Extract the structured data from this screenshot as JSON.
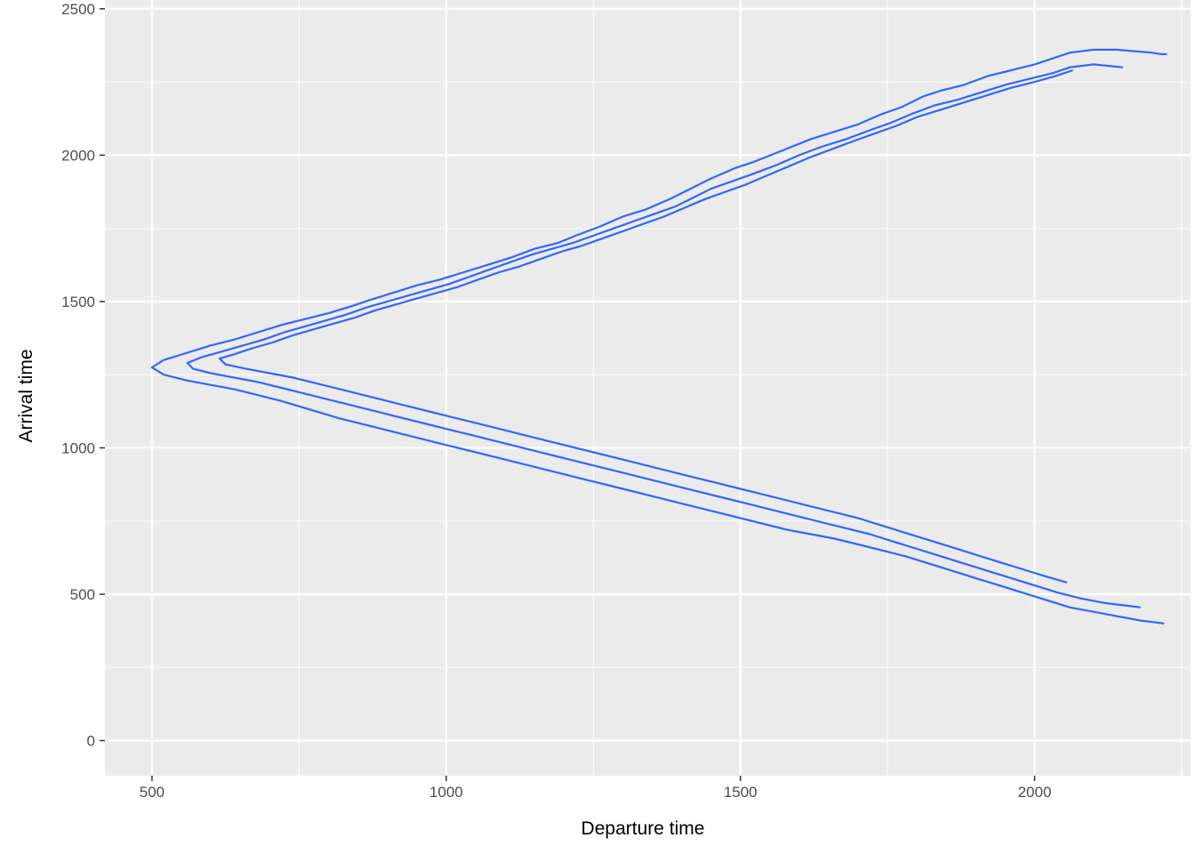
{
  "chart_data": {
    "type": "line",
    "subtype": "density-contour",
    "title": "",
    "xlabel": "Departure time",
    "ylabel": "Arrival time",
    "xlim": [
      420,
      2265
    ],
    "ylim": [
      -120,
      2530
    ],
    "x_ticks": [
      500,
      1000,
      1500,
      2000
    ],
    "y_ticks": [
      0,
      500,
      1000,
      1500,
      2000,
      2500
    ],
    "x_tick_labels": [
      "500",
      "1000",
      "1500",
      "2000"
    ],
    "y_tick_labels": [
      "0",
      "500",
      "1000",
      "1500",
      "2000",
      "2500"
    ],
    "x_minor_ticks": [
      750,
      1250,
      1750,
      2250
    ],
    "y_minor_ticks": [
      250,
      750,
      1250,
      1750,
      2250
    ],
    "grid": true,
    "legend": "none",
    "colors": {
      "panel": "#ebebeb",
      "grid": "#ffffff",
      "line": "#3366ff"
    },
    "series": [
      {
        "points": [
          [
            2225,
            2345
          ],
          [
            2215,
            2345
          ],
          [
            2200,
            2350
          ],
          [
            2170,
            2355
          ],
          [
            2140,
            2360
          ],
          [
            2100,
            2360
          ],
          [
            2060,
            2350
          ],
          [
            2030,
            2330
          ],
          [
            2000,
            2310
          ],
          [
            1960,
            2290
          ],
          [
            1920,
            2270
          ],
          [
            1880,
            2240
          ],
          [
            1840,
            2220
          ],
          [
            1810,
            2200
          ],
          [
            1775,
            2165
          ],
          [
            1740,
            2140
          ],
          [
            1700,
            2105
          ],
          [
            1660,
            2080
          ],
          [
            1620,
            2055
          ],
          [
            1570,
            2015
          ],
          [
            1520,
            1975
          ],
          [
            1490,
            1955
          ],
          [
            1450,
            1920
          ],
          [
            1420,
            1890
          ],
          [
            1380,
            1850
          ],
          [
            1340,
            1815
          ],
          [
            1300,
            1790
          ],
          [
            1260,
            1755
          ],
          [
            1220,
            1725
          ],
          [
            1190,
            1700
          ],
          [
            1150,
            1680
          ],
          [
            1110,
            1650
          ],
          [
            1070,
            1625
          ],
          [
            1030,
            1600
          ],
          [
            990,
            1575
          ],
          [
            950,
            1555
          ],
          [
            910,
            1530
          ],
          [
            870,
            1505
          ],
          [
            840,
            1485
          ],
          [
            800,
            1460
          ],
          [
            760,
            1440
          ],
          [
            720,
            1420
          ],
          [
            680,
            1395
          ],
          [
            640,
            1370
          ],
          [
            600,
            1350
          ],
          [
            560,
            1325
          ],
          [
            520,
            1300
          ],
          [
            500,
            1275
          ],
          [
            520,
            1250
          ],
          [
            560,
            1230
          ],
          [
            600,
            1215
          ],
          [
            640,
            1200
          ],
          [
            680,
            1180
          ],
          [
            720,
            1160
          ],
          [
            770,
            1130
          ],
          [
            820,
            1100
          ],
          [
            860,
            1080
          ],
          [
            900,
            1060
          ],
          [
            940,
            1040
          ],
          [
            980,
            1020
          ],
          [
            1020,
            1000
          ],
          [
            1060,
            980
          ],
          [
            1100,
            960
          ],
          [
            1140,
            940
          ],
          [
            1180,
            920
          ],
          [
            1220,
            900
          ],
          [
            1260,
            880
          ],
          [
            1300,
            860
          ],
          [
            1340,
            840
          ],
          [
            1380,
            820
          ],
          [
            1420,
            800
          ],
          [
            1460,
            780
          ],
          [
            1500,
            760
          ],
          [
            1540,
            740
          ],
          [
            1580,
            720
          ],
          [
            1620,
            705
          ],
          [
            1660,
            690
          ],
          [
            1700,
            670
          ],
          [
            1740,
            650
          ],
          [
            1780,
            630
          ],
          [
            1820,
            605
          ],
          [
            1860,
            580
          ],
          [
            1900,
            555
          ],
          [
            1940,
            530
          ],
          [
            1980,
            505
          ],
          [
            2020,
            480
          ],
          [
            2060,
            455
          ],
          [
            2100,
            440
          ],
          [
            2140,
            425
          ],
          [
            2180,
            410
          ],
          [
            2200,
            405
          ],
          [
            2220,
            400
          ]
        ]
      },
      {
        "points": [
          [
            2150,
            2300
          ],
          [
            2100,
            2310
          ],
          [
            2060,
            2300
          ],
          [
            2030,
            2280
          ],
          [
            1990,
            2260
          ],
          [
            1950,
            2240
          ],
          [
            1910,
            2215
          ],
          [
            1870,
            2190
          ],
          [
            1830,
            2170
          ],
          [
            1790,
            2140
          ],
          [
            1755,
            2110
          ],
          [
            1720,
            2085
          ],
          [
            1680,
            2055
          ],
          [
            1640,
            2030
          ],
          [
            1600,
            2000
          ],
          [
            1560,
            1965
          ],
          [
            1520,
            1935
          ],
          [
            1485,
            1910
          ],
          [
            1450,
            1885
          ],
          [
            1420,
            1855
          ],
          [
            1390,
            1825
          ],
          [
            1355,
            1800
          ],
          [
            1320,
            1775
          ],
          [
            1285,
            1750
          ],
          [
            1250,
            1725
          ],
          [
            1215,
            1700
          ],
          [
            1180,
            1680
          ],
          [
            1145,
            1660
          ],
          [
            1110,
            1635
          ],
          [
            1075,
            1610
          ],
          [
            1040,
            1585
          ],
          [
            1005,
            1560
          ],
          [
            970,
            1540
          ],
          [
            935,
            1520
          ],
          [
            900,
            1500
          ],
          [
            865,
            1480
          ],
          [
            830,
            1455
          ],
          [
            795,
            1435
          ],
          [
            760,
            1415
          ],
          [
            725,
            1395
          ],
          [
            690,
            1370
          ],
          [
            655,
            1350
          ],
          [
            620,
            1330
          ],
          [
            585,
            1310
          ],
          [
            560,
            1290
          ],
          [
            570,
            1270
          ],
          [
            600,
            1255
          ],
          [
            640,
            1240
          ],
          [
            680,
            1225
          ],
          [
            720,
            1205
          ],
          [
            760,
            1185
          ],
          [
            800,
            1165
          ],
          [
            840,
            1145
          ],
          [
            880,
            1125
          ],
          [
            920,
            1105
          ],
          [
            960,
            1085
          ],
          [
            1000,
            1065
          ],
          [
            1040,
            1045
          ],
          [
            1080,
            1025
          ],
          [
            1120,
            1005
          ],
          [
            1160,
            985
          ],
          [
            1200,
            965
          ],
          [
            1240,
            945
          ],
          [
            1280,
            925
          ],
          [
            1320,
            905
          ],
          [
            1360,
            885
          ],
          [
            1400,
            865
          ],
          [
            1440,
            845
          ],
          [
            1480,
            825
          ],
          [
            1520,
            805
          ],
          [
            1560,
            785
          ],
          [
            1600,
            765
          ],
          [
            1640,
            745
          ],
          [
            1680,
            725
          ],
          [
            1720,
            705
          ],
          [
            1760,
            680
          ],
          [
            1800,
            655
          ],
          [
            1840,
            630
          ],
          [
            1880,
            605
          ],
          [
            1920,
            580
          ],
          [
            1960,
            555
          ],
          [
            2000,
            530
          ],
          [
            2040,
            505
          ],
          [
            2080,
            485
          ],
          [
            2120,
            470
          ],
          [
            2160,
            460
          ],
          [
            2180,
            455
          ]
        ]
      },
      {
        "points": [
          [
            2065,
            2290
          ],
          [
            2035,
            2270
          ],
          [
            2000,
            2250
          ],
          [
            1960,
            2230
          ],
          [
            1920,
            2205
          ],
          [
            1880,
            2180
          ],
          [
            1840,
            2155
          ],
          [
            1800,
            2130
          ],
          [
            1765,
            2100
          ],
          [
            1730,
            2075
          ],
          [
            1695,
            2050
          ],
          [
            1655,
            2020
          ],
          [
            1615,
            1990
          ],
          [
            1580,
            1960
          ],
          [
            1545,
            1930
          ],
          [
            1510,
            1900
          ],
          [
            1475,
            1875
          ],
          [
            1440,
            1850
          ],
          [
            1405,
            1820
          ],
          [
            1370,
            1790
          ],
          [
            1335,
            1765
          ],
          [
            1300,
            1740
          ],
          [
            1265,
            1715
          ],
          [
            1230,
            1690
          ],
          [
            1195,
            1670
          ],
          [
            1160,
            1645
          ],
          [
            1125,
            1620
          ],
          [
            1090,
            1600
          ],
          [
            1055,
            1575
          ],
          [
            1020,
            1550
          ],
          [
            985,
            1530
          ],
          [
            950,
            1510
          ],
          [
            915,
            1490
          ],
          [
            880,
            1470
          ],
          [
            845,
            1445
          ],
          [
            810,
            1425
          ],
          [
            775,
            1405
          ],
          [
            740,
            1385
          ],
          [
            705,
            1360
          ],
          [
            670,
            1340
          ],
          [
            640,
            1320
          ],
          [
            615,
            1305
          ],
          [
            625,
            1285
          ],
          [
            660,
            1270
          ],
          [
            700,
            1255
          ],
          [
            740,
            1240
          ],
          [
            780,
            1220
          ],
          [
            820,
            1200
          ],
          [
            860,
            1180
          ],
          [
            900,
            1160
          ],
          [
            940,
            1140
          ],
          [
            980,
            1120
          ],
          [
            1020,
            1100
          ],
          [
            1060,
            1080
          ],
          [
            1100,
            1060
          ],
          [
            1140,
            1040
          ],
          [
            1180,
            1020
          ],
          [
            1220,
            1000
          ],
          [
            1260,
            980
          ],
          [
            1300,
            960
          ],
          [
            1340,
            940
          ],
          [
            1380,
            920
          ],
          [
            1420,
            900
          ],
          [
            1460,
            880
          ],
          [
            1500,
            860
          ],
          [
            1540,
            840
          ],
          [
            1580,
            820
          ],
          [
            1620,
            800
          ],
          [
            1660,
            780
          ],
          [
            1700,
            760
          ],
          [
            1740,
            735
          ],
          [
            1780,
            710
          ],
          [
            1820,
            685
          ],
          [
            1860,
            660
          ],
          [
            1900,
            635
          ],
          [
            1940,
            610
          ],
          [
            1980,
            585
          ],
          [
            2020,
            560
          ],
          [
            2055,
            540
          ]
        ]
      }
    ]
  }
}
